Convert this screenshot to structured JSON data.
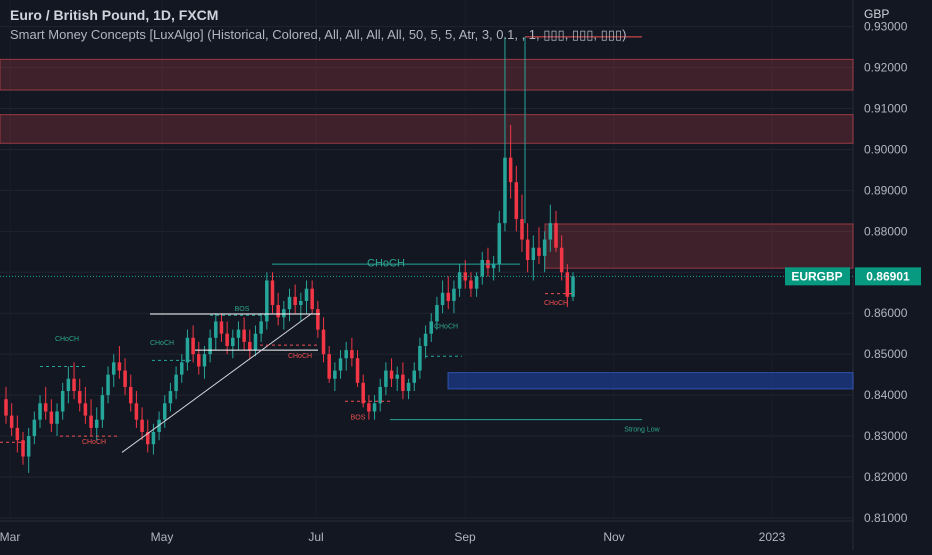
{
  "header": {
    "title": "Euro / British Pound, 1D, FXCM",
    "indicator": "Smart Money Concepts [LuxAlgo] (Historical, Colored, All, All, All, All, 50, 5, 5, Atr, 3, 0.1, , 1, ▯▯▯, ▯▯▯, ▯▯▯)",
    "currency": "GBP"
  },
  "chart_data": {
    "type": "candlestick",
    "symbol": "EURGBP",
    "last_price": 0.86901,
    "ylim": [
      0.8095,
      0.9365
    ],
    "x_ticks": [
      "Mar",
      "May",
      "Jul",
      "Sep",
      "Nov",
      "2023"
    ],
    "y_ticks": [
      "0.81000",
      "0.82000",
      "0.83000",
      "0.84000",
      "0.85000",
      "0.86000",
      "0.87000",
      "0.88000",
      "0.89000",
      "0.90000",
      "0.91000",
      "0.92000",
      "0.93000"
    ],
    "candles_ohlc": [
      [
        0.839,
        0.842,
        0.833,
        0.835
      ],
      [
        0.835,
        0.838,
        0.83,
        0.832
      ],
      [
        0.832,
        0.835,
        0.826,
        0.829
      ],
      [
        0.829,
        0.831,
        0.823,
        0.825
      ],
      [
        0.825,
        0.832,
        0.821,
        0.83
      ],
      [
        0.83,
        0.836,
        0.828,
        0.834
      ],
      [
        0.834,
        0.84,
        0.832,
        0.838
      ],
      [
        0.838,
        0.842,
        0.834,
        0.836
      ],
      [
        0.836,
        0.839,
        0.831,
        0.833
      ],
      [
        0.833,
        0.838,
        0.83,
        0.836
      ],
      [
        0.836,
        0.843,
        0.834,
        0.841
      ],
      [
        0.841,
        0.847,
        0.838,
        0.844
      ],
      [
        0.844,
        0.848,
        0.839,
        0.841
      ],
      [
        0.841,
        0.844,
        0.836,
        0.838
      ],
      [
        0.838,
        0.842,
        0.833,
        0.835
      ],
      [
        0.835,
        0.839,
        0.83,
        0.832
      ],
      [
        0.832,
        0.837,
        0.829,
        0.834
      ],
      [
        0.834,
        0.842,
        0.832,
        0.84
      ],
      [
        0.84,
        0.847,
        0.838,
        0.845
      ],
      [
        0.845,
        0.85,
        0.842,
        0.848
      ],
      [
        0.848,
        0.852,
        0.844,
        0.846
      ],
      [
        0.846,
        0.849,
        0.84,
        0.842
      ],
      [
        0.842,
        0.845,
        0.836,
        0.838
      ],
      [
        0.838,
        0.841,
        0.832,
        0.834
      ],
      [
        0.834,
        0.837,
        0.829,
        0.831
      ],
      [
        0.831,
        0.834,
        0.826,
        0.828
      ],
      [
        0.828,
        0.833,
        0.8255,
        0.831
      ],
      [
        0.831,
        0.836,
        0.829,
        0.834
      ],
      [
        0.834,
        0.84,
        0.832,
        0.838
      ],
      [
        0.838,
        0.843,
        0.836,
        0.841
      ],
      [
        0.841,
        0.847,
        0.839,
        0.845
      ],
      [
        0.845,
        0.85,
        0.843,
        0.848
      ],
      [
        0.848,
        0.856,
        0.846,
        0.854
      ],
      [
        0.854,
        0.857,
        0.848,
        0.85
      ],
      [
        0.85,
        0.853,
        0.845,
        0.847
      ],
      [
        0.847,
        0.852,
        0.844,
        0.85
      ],
      [
        0.85,
        0.856,
        0.848,
        0.854
      ],
      [
        0.854,
        0.86,
        0.851,
        0.858
      ],
      [
        0.858,
        0.86,
        0.853,
        0.855
      ],
      [
        0.855,
        0.858,
        0.85,
        0.852
      ],
      [
        0.852,
        0.856,
        0.849,
        0.854
      ],
      [
        0.854,
        0.858,
        0.851,
        0.856
      ],
      [
        0.856,
        0.859,
        0.851,
        0.853
      ],
      [
        0.853,
        0.856,
        0.849,
        0.851
      ],
      [
        0.851,
        0.857,
        0.8495,
        0.855
      ],
      [
        0.855,
        0.86,
        0.853,
        0.858
      ],
      [
        0.858,
        0.87,
        0.856,
        0.868
      ],
      [
        0.868,
        0.87,
        0.86,
        0.862
      ],
      [
        0.862,
        0.865,
        0.857,
        0.859
      ],
      [
        0.859,
        0.863,
        0.856,
        0.861
      ],
      [
        0.861,
        0.866,
        0.858,
        0.864
      ],
      [
        0.864,
        0.867,
        0.86,
        0.862
      ],
      [
        0.862,
        0.865,
        0.858,
        0.863
      ],
      [
        0.863,
        0.868,
        0.86,
        0.866
      ],
      [
        0.866,
        0.868,
        0.86,
        0.861
      ],
      [
        0.861,
        0.863,
        0.854,
        0.856
      ],
      [
        0.856,
        0.859,
        0.848,
        0.85
      ],
      [
        0.85,
        0.852,
        0.843,
        0.844
      ],
      [
        0.844,
        0.848,
        0.841,
        0.846
      ],
      [
        0.846,
        0.851,
        0.844,
        0.849
      ],
      [
        0.849,
        0.853,
        0.846,
        0.851
      ],
      [
        0.851,
        0.854,
        0.847,
        0.849
      ],
      [
        0.849,
        0.851,
        0.842,
        0.843
      ],
      [
        0.843,
        0.845,
        0.837,
        0.838
      ],
      [
        0.838,
        0.84,
        0.834,
        0.836
      ],
      [
        0.836,
        0.84,
        0.834,
        0.838
      ],
      [
        0.838,
        0.844,
        0.836,
        0.842
      ],
      [
        0.842,
        0.848,
        0.84,
        0.846
      ],
      [
        0.846,
        0.849,
        0.842,
        0.844
      ],
      [
        0.844,
        0.847,
        0.841,
        0.845
      ],
      [
        0.845,
        0.848,
        0.839,
        0.841
      ],
      [
        0.841,
        0.844,
        0.839,
        0.843
      ],
      [
        0.843,
        0.848,
        0.841,
        0.846
      ],
      [
        0.846,
        0.854,
        0.844,
        0.852
      ],
      [
        0.852,
        0.857,
        0.849,
        0.855
      ],
      [
        0.855,
        0.86,
        0.853,
        0.858
      ],
      [
        0.858,
        0.864,
        0.856,
        0.862
      ],
      [
        0.862,
        0.868,
        0.86,
        0.865
      ],
      [
        0.865,
        0.869,
        0.861,
        0.863
      ],
      [
        0.863,
        0.868,
        0.86,
        0.866
      ],
      [
        0.866,
        0.872,
        0.864,
        0.87
      ],
      [
        0.87,
        0.873,
        0.866,
        0.868
      ],
      [
        0.868,
        0.87,
        0.864,
        0.866
      ],
      [
        0.866,
        0.87,
        0.864,
        0.869
      ],
      [
        0.869,
        0.875,
        0.867,
        0.873
      ],
      [
        0.873,
        0.876,
        0.869,
        0.871
      ],
      [
        0.871,
        0.874,
        0.868,
        0.872
      ],
      [
        0.872,
        0.885,
        0.87,
        0.882
      ],
      [
        0.882,
        0.9275,
        0.88,
        0.898
      ],
      [
        0.898,
        0.906,
        0.888,
        0.892
      ],
      [
        0.892,
        0.896,
        0.88,
        0.883
      ],
      [
        0.883,
        0.889,
        0.875,
        0.878
      ],
      [
        0.878,
        0.882,
        0.87,
        0.873
      ],
      [
        0.873,
        0.879,
        0.868,
        0.876
      ],
      [
        0.876,
        0.881,
        0.872,
        0.874
      ],
      [
        0.874,
        0.88,
        0.87,
        0.878
      ],
      [
        0.878,
        0.8865,
        0.875,
        0.882
      ],
      [
        0.882,
        0.885,
        0.875,
        0.876
      ],
      [
        0.876,
        0.879,
        0.868,
        0.87
      ],
      [
        0.87,
        0.872,
        0.8615,
        0.864
      ],
      [
        0.864,
        0.87,
        0.863,
        0.869
      ]
    ],
    "zones": [
      {
        "kind": "supply",
        "top": 0.922,
        "bottom": 0.9145
      },
      {
        "kind": "supply",
        "top": 0.9085,
        "bottom": 0.9015
      },
      {
        "kind": "supply",
        "top": 0.8818,
        "bottom": 0.871
      },
      {
        "kind": "demand",
        "top": 0.8455,
        "bottom": 0.8415
      }
    ],
    "structure_labels": [
      {
        "text": "CHoCH",
        "level": 0.87,
        "color": "#2ea58c",
        "size": 11
      },
      {
        "text": "BOS",
        "level": 0.86,
        "color": "#2ea58c",
        "size": 7
      },
      {
        "text": "CHoCH",
        "level": 0.8525,
        "color": "#2ea58c",
        "size": 7
      },
      {
        "text": "CHoCH",
        "level": 0.8515,
        "color": "#2ea58c",
        "size": 7
      },
      {
        "text": "CHoCH",
        "level": 0.8555,
        "color": "#2ea58c",
        "size": 7
      },
      {
        "text": "CHoCH",
        "level": 0.8305,
        "color": "#f05050",
        "size": 7
      },
      {
        "text": "CHoCH",
        "level": 0.852,
        "color": "#f05050",
        "size": 7
      },
      {
        "text": "BOS",
        "level": 0.837,
        "color": "#f05050",
        "size": 7
      },
      {
        "text": "CHoCH",
        "level": 0.865,
        "color": "#f05050",
        "size": 7
      },
      {
        "text": "Strong Low",
        "level": 0.834,
        "color": "#2ea58c",
        "size": 7
      }
    ]
  }
}
